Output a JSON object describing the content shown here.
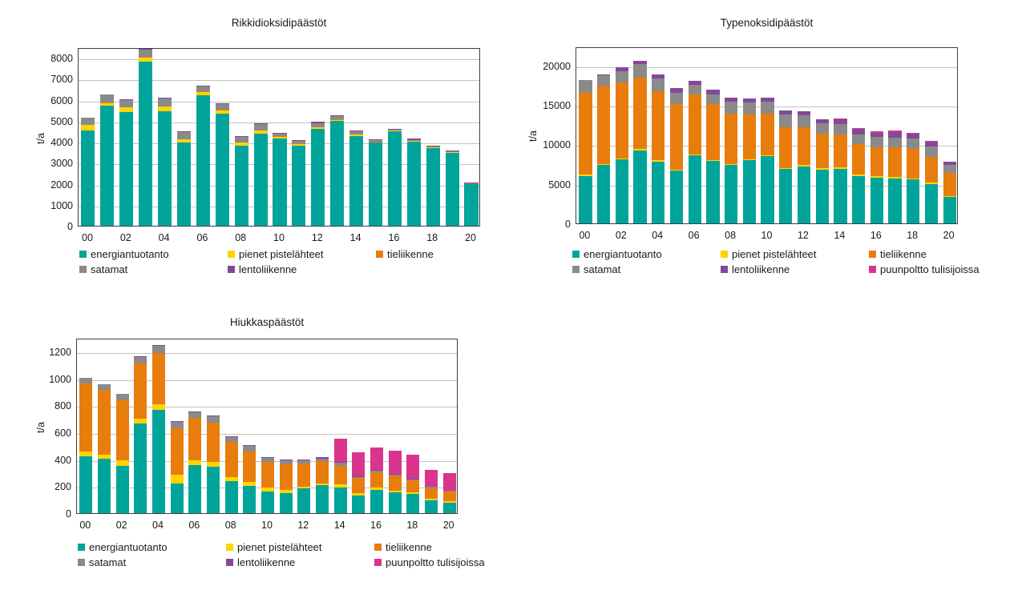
{
  "page": {
    "background": "#ffffff"
  },
  "ylabel_shared": "t/a",
  "chart_data": [
    {
      "type": "bar",
      "stacked": true,
      "title": "Rikkidioksidipäästöt",
      "ylabel": "t/a",
      "categories": [
        "00",
        "01",
        "02",
        "03",
        "04",
        "05",
        "06",
        "07",
        "08",
        "09",
        "10",
        "11",
        "12",
        "13",
        "14",
        "15",
        "16",
        "17",
        "18",
        "19",
        "20"
      ],
      "x_tick_shown_every": 2,
      "ylim": [
        0,
        8500
      ],
      "ystep": 1000,
      "grid": true,
      "legend_position": "bottom",
      "series": [
        {
          "name": "energiantuotanto",
          "color": "#00A49A",
          "values": [
            4550,
            5700,
            5430,
            7820,
            5450,
            3970,
            6200,
            5350,
            3820,
            4380,
            4150,
            3820,
            4620,
            5000,
            4280,
            3950,
            4480,
            4020,
            3710,
            3460,
            1980
          ]
        },
        {
          "name": "pienet pistelähteet",
          "color": "#FFD400",
          "values": [
            250,
            150,
            220,
            200,
            230,
            150,
            150,
            150,
            140,
            150,
            100,
            80,
            60,
            50,
            70,
            40,
            50,
            30,
            20,
            40,
            10
          ]
        },
        {
          "name": "tieliikenne",
          "color": "#E87D0E",
          "values": [
            10,
            10,
            10,
            10,
            10,
            10,
            60,
            10,
            10,
            10,
            10,
            10,
            10,
            10,
            10,
            10,
            10,
            10,
            10,
            10,
            10
          ]
        },
        {
          "name": "satamat",
          "color": "#8A8A8A",
          "values": [
            330,
            380,
            330,
            380,
            360,
            340,
            230,
            300,
            280,
            310,
            140,
            150,
            200,
            170,
            130,
            70,
            50,
            30,
            20,
            40,
            10
          ]
        },
        {
          "name": "lentoliikenne",
          "color": "#84489C",
          "values": [
            0,
            0,
            20,
            10,
            10,
            30,
            40,
            20,
            20,
            20,
            30,
            30,
            60,
            30,
            40,
            40,
            30,
            50,
            40,
            30,
            30
          ]
        }
      ]
    },
    {
      "type": "bar",
      "stacked": true,
      "title": "Typenoksidipäästöt",
      "ylabel": "t/a",
      "categories": [
        "00",
        "01",
        "02",
        "03",
        "04",
        "05",
        "06",
        "07",
        "08",
        "09",
        "10",
        "11",
        "12",
        "13",
        "14",
        "15",
        "16",
        "17",
        "18",
        "19",
        "20"
      ],
      "x_tick_shown_every": 2,
      "ylim": [
        0,
        22400
      ],
      "ystep": 5000,
      "grid": true,
      "legend_position": "bottom",
      "series": [
        {
          "name": "energiantuotanto",
          "color": "#00A49A",
          "values": [
            6000,
            7400,
            8100,
            9200,
            7800,
            6700,
            8600,
            7900,
            7400,
            8000,
            8500,
            6900,
            7200,
            6800,
            6900,
            6000,
            5800,
            5700,
            5550,
            5000,
            3300
          ]
        },
        {
          "name": "pienet pistelähteet",
          "color": "#FFD400",
          "values": [
            150,
            100,
            100,
            200,
            200,
            100,
            100,
            100,
            100,
            100,
            100,
            100,
            200,
            150,
            150,
            200,
            150,
            150,
            100,
            150,
            100
          ]
        },
        {
          "name": "tieliikenne",
          "color": "#E87D0E",
          "values": [
            10350,
            9900,
            9600,
            9000,
            8700,
            8300,
            7600,
            7100,
            6400,
            5700,
            5300,
            5200,
            4800,
            4450,
            4250,
            3800,
            3650,
            3750,
            3750,
            3250,
            3000
          ]
        },
        {
          "name": "satamat",
          "color": "#8A8A8A",
          "values": [
            1600,
            1400,
            1500,
            1800,
            1600,
            1400,
            1200,
            1200,
            1500,
            1500,
            1500,
            1600,
            1500,
            1300,
            1300,
            1300,
            1300,
            1200,
            1300,
            1300,
            1000
          ]
        },
        {
          "name": "lentoliikenne",
          "color": "#84489C",
          "values": [
            0,
            100,
            450,
            400,
            600,
            600,
            500,
            600,
            500,
            500,
            500,
            500,
            500,
            500,
            550,
            650,
            600,
            800,
            650,
            700,
            400
          ]
        },
        {
          "name": "puunpoltto tulisijoissa",
          "color": "#D9358C",
          "values": [
            0,
            0,
            0,
            0,
            0,
            0,
            0,
            0,
            0,
            0,
            0,
            0,
            0,
            0,
            50,
            150,
            200,
            200,
            150,
            50,
            0
          ]
        }
      ]
    },
    {
      "type": "bar",
      "stacked": true,
      "title": "Hiukkaspäästöt",
      "ylabel": "t/a",
      "categories": [
        "00",
        "01",
        "02",
        "03",
        "04",
        "05",
        "06",
        "07",
        "08",
        "09",
        "10",
        "11",
        "12",
        "13",
        "14",
        "15",
        "16",
        "17",
        "18",
        "19",
        "20"
      ],
      "x_tick_shown_every": 2,
      "ylim": [
        0,
        1300
      ],
      "ystep": 200,
      "grid": true,
      "legend_position": "bottom",
      "series": [
        {
          "name": "energiantuotanto",
          "color": "#00A49A",
          "values": [
            420,
            405,
            350,
            665,
            765,
            220,
            355,
            345,
            237,
            203,
            163,
            150,
            183,
            207,
            193,
            128,
            170,
            153,
            140,
            95,
            78
          ]
        },
        {
          "name": "pienet pistelähteet",
          "color": "#FFD400",
          "values": [
            35,
            30,
            40,
            35,
            40,
            65,
            35,
            35,
            30,
            30,
            25,
            25,
            15,
            15,
            20,
            18,
            18,
            15,
            13,
            12,
            14
          ]
        },
        {
          "name": "tieliikenne",
          "color": "#E87D0E",
          "values": [
            505,
            480,
            450,
            410,
            385,
            345,
            315,
            290,
            263,
            222,
            190,
            190,
            172,
            165,
            140,
            115,
            115,
            110,
            90,
            80,
            66
          ]
        },
        {
          "name": "satamat",
          "color": "#8A8A8A",
          "values": [
            45,
            40,
            45,
            45,
            50,
            45,
            45,
            50,
            35,
            42,
            32,
            25,
            20,
            18,
            20,
            10,
            12,
            10,
            10,
            8,
            8
          ]
        },
        {
          "name": "lentoliikenne",
          "color": "#84489C",
          "values": [
            0,
            0,
            0,
            8,
            5,
            5,
            3,
            5,
            5,
            5,
            5,
            8,
            8,
            8,
            5,
            4,
            4,
            4,
            4,
            3,
            3
          ]
        },
        {
          "name": "puunpoltto tulisijoissa",
          "color": "#D9358C",
          "values": [
            0,
            0,
            0,
            0,
            0,
            0,
            0,
            0,
            0,
            0,
            0,
            0,
            0,
            0,
            172,
            175,
            170,
            173,
            175,
            122,
            126
          ]
        }
      ]
    }
  ]
}
